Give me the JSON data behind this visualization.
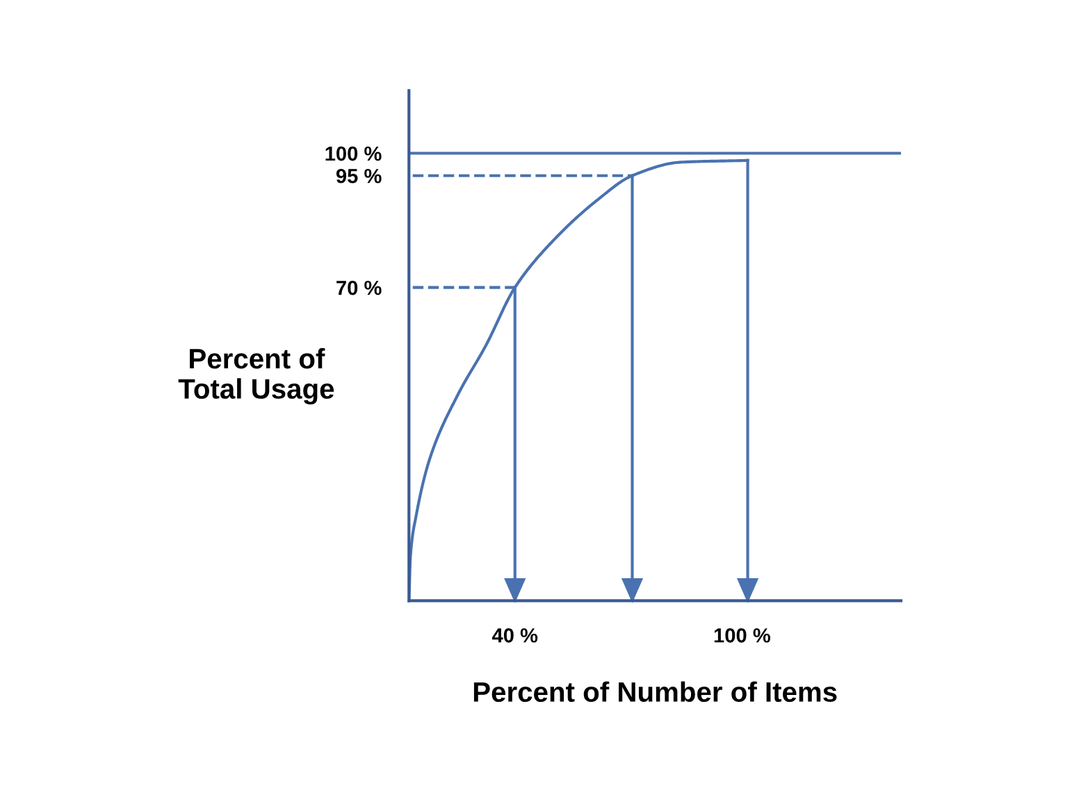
{
  "chart_data": {
    "type": "line",
    "xlabel": "Percent of Number of Items",
    "ylabel": "Percent of\nTotal Usage",
    "xlim": [
      12,
      142
    ],
    "ylim": [
      0,
      114
    ],
    "xticks": [
      {
        "value": 40,
        "label": "40 %"
      },
      {
        "value": 100,
        "label": "100 %"
      }
    ],
    "yticks": [
      {
        "value": 70,
        "label": "70 %"
      },
      {
        "value": 95,
        "label": "95 %"
      },
      {
        "value": 100,
        "label": "100 %"
      }
    ],
    "grid": false,
    "marker": "none",
    "line_style": "solid",
    "ref_lines": [
      {
        "axis": "y",
        "value": 100,
        "color": "#4a72b0"
      }
    ],
    "series": [
      {
        "color": "#4a72b0",
        "x": [
          12,
          12.4,
          13.9,
          17.6,
          24.9,
          32.3,
          40,
          50.7,
          61.7,
          71,
          83.8,
          101.5
        ],
        "values": [
          0,
          10,
          19,
          32,
          46,
          57,
          70,
          81,
          89.5,
          95,
          98,
          98.4
        ]
      },
      {
        "color": "#4a72b0",
        "line_style": "dashed",
        "x": [
          13,
          40,
          40
        ],
        "values": [
          70,
          70,
          0
        ]
      },
      {
        "color": "#4a72b0",
        "line_style": "dashed",
        "x": [
          13,
          71,
          71
        ],
        "values": [
          95,
          95,
          0
        ]
      },
      {
        "color": "#4a72b0",
        "x": [
          101.5,
          101.5
        ],
        "values": [
          98.4,
          0
        ]
      }
    ]
  }
}
